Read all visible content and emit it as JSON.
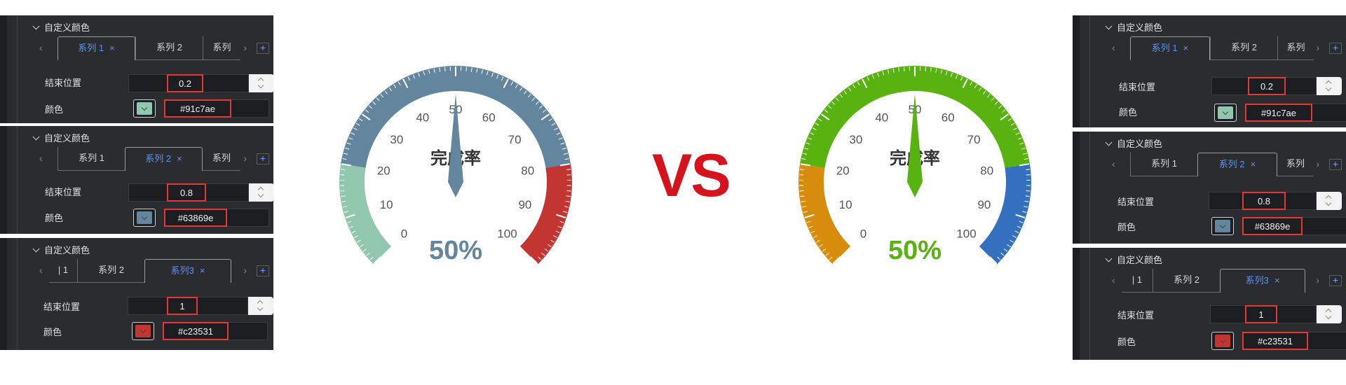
{
  "section_title": "自定义颜色",
  "tab_labels": [
    "系列 1",
    "系列 2",
    "系列3"
  ],
  "tab_clipped": [
    "系列",
    "系列",
    "系列",
    "| 1"
  ],
  "tab_close": "×",
  "nav": {
    "prev": "‹",
    "next": "›",
    "add": "+"
  },
  "end_label": "结束位置",
  "color_label": "颜色",
  "series": [
    {
      "end": "0.2",
      "color": "#91c7ae",
      "color_text": "#91c7ae"
    },
    {
      "end": "0.8",
      "color": "#63869e",
      "color_text": "#63869e"
    },
    {
      "end": "1",
      "color": "#c23531",
      "color_text": "#c23531"
    }
  ],
  "vs": "VS",
  "gauges": [
    {
      "name": "完成率",
      "value": 50,
      "value_text": "50%",
      "min": 0,
      "max": 100,
      "ticks": [
        "0",
        "10",
        "20",
        "30",
        "40",
        "50",
        "60",
        "70",
        "80",
        "90",
        "100"
      ],
      "bands": [
        {
          "to": 0.2,
          "color": "#91c7ae"
        },
        {
          "to": 0.8,
          "color": "#63869e"
        },
        {
          "to": 1,
          "color": "#c23531"
        }
      ],
      "pointer_color": "#63869e",
      "value_color": "#63869e"
    },
    {
      "name": "完成率",
      "value": 50,
      "value_text": "50%",
      "min": 0,
      "max": 100,
      "ticks": [
        "0",
        "10",
        "20",
        "30",
        "40",
        "50",
        "60",
        "70",
        "80",
        "90",
        "100"
      ],
      "bands": [
        {
          "to": 0.2,
          "color": "#d88c0c"
        },
        {
          "to": 0.8,
          "color": "#58b210"
        },
        {
          "to": 1,
          "color": "#3470bd"
        }
      ],
      "pointer_color": "#58b210",
      "value_color": "#58b210"
    }
  ]
}
